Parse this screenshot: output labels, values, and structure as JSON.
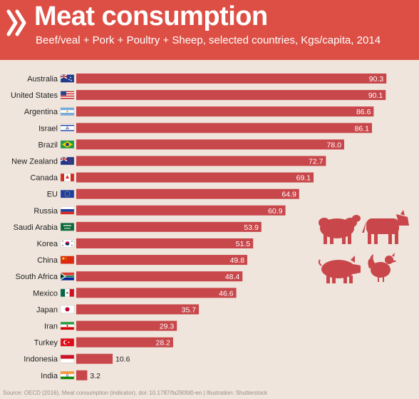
{
  "header": {
    "title": "Meat consumption",
    "subtitle": "Beef/veal + Pork + Poultry + Sheep, selected countries, Kgs/capita, 2014"
  },
  "source": "Source: OECD (2016), Meat consumption (indicator), doi: 10.1787/fa290fd0-en | Illustration: Shutterstock",
  "colors": {
    "header": "#dd4f45",
    "bar": "#c8474b",
    "background": "#efe5dc",
    "animal": "#c9474b"
  },
  "icons": [
    "oecd-logo-icon",
    "sheep-icon",
    "cow-icon",
    "pig-icon",
    "chicken-icon"
  ],
  "chart_data": {
    "type": "bar",
    "orientation": "horizontal",
    "title": "Meat consumption",
    "subtitle": "Beef/veal + Pork + Poultry + Sheep, selected countries, Kgs/capita, 2014",
    "categories": [
      "Australia",
      "United States",
      "Argentina",
      "Israel",
      "Brazil",
      "New Zealand",
      "Canada",
      "EU",
      "Russia",
      "Saudi Arabia",
      "Korea",
      "China",
      "South Africa",
      "Mexico",
      "Japan",
      "Iran",
      "Turkey",
      "Indonesia",
      "India"
    ],
    "values": [
      90.3,
      90.1,
      86.6,
      86.1,
      78.0,
      72.7,
      69.1,
      64.9,
      60.9,
      53.9,
      51.5,
      49.8,
      48.4,
      46.6,
      35.7,
      29.3,
      28.2,
      10.6,
      3.2
    ],
    "value_labels": [
      "90.3",
      "90.1",
      "86.6",
      "86.1",
      "78.0",
      "72.7",
      "69.1",
      "64.9",
      "60.9",
      "53.9",
      "51.5",
      "49.8",
      "48.4",
      "46.6",
      "35.7",
      "29.3",
      "28.2",
      "10.6",
      "3.2"
    ],
    "flags": [
      "australia-flag-icon",
      "united-states-flag-icon",
      "argentina-flag-icon",
      "israel-flag-icon",
      "brazil-flag-icon",
      "new-zealand-flag-icon",
      "canada-flag-icon",
      "eu-flag-icon",
      "russia-flag-icon",
      "saudi-arabia-flag-icon",
      "korea-flag-icon",
      "china-flag-icon",
      "south-africa-flag-icon",
      "mexico-flag-icon",
      "japan-flag-icon",
      "iran-flag-icon",
      "turkey-flag-icon",
      "indonesia-flag-icon",
      "india-flag-icon"
    ],
    "xlim": [
      0,
      100
    ],
    "xlabel": "",
    "ylabel": "",
    "grid": false
  }
}
